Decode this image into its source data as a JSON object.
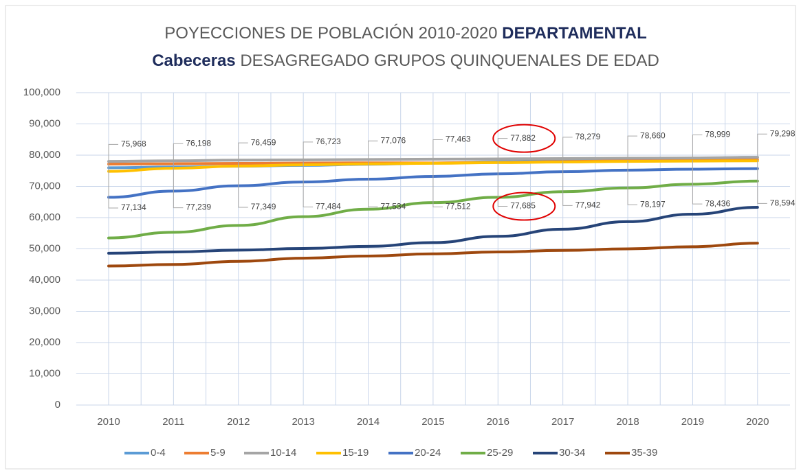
{
  "chart_data": {
    "type": "line",
    "title": [
      "POYECCIONES DE POBLACIÓN 2010-2020",
      "DEPARTAMENTAL",
      "Cabeceras",
      "DESAGREGADO GRUPOS QUINQUENALES DE EDAD"
    ],
    "categories": [
      "2010",
      "2011",
      "2012",
      "2013",
      "2014",
      "2015",
      "2016",
      "2017",
      "2018",
      "2019",
      "2020"
    ],
    "series": [
      {
        "name": "0-4",
        "color": "#5b9bd5",
        "values": [
          75968,
          76198,
          76459,
          76723,
          77076,
          77463,
          77882,
          78279,
          78660,
          78999,
          79298
        ],
        "value_labels": [
          "75,968",
          "76,198",
          "76,459",
          "76,723",
          "77,076",
          "77,463",
          "77,882",
          "78,279",
          "78,660",
          "78,999",
          "79,298"
        ]
      },
      {
        "name": "5-9",
        "color": "#ed7d31",
        "values": [
          77134,
          77239,
          77349,
          77484,
          77534,
          77512,
          77685,
          77942,
          78197,
          78436,
          78594
        ],
        "value_labels": [
          "77,134",
          "77,239",
          "77,349",
          "77,484",
          "77,534",
          "77,512",
          "77,685",
          "77,942",
          "78,197",
          "78,436",
          "78,594"
        ]
      },
      {
        "name": "10-14",
        "color": "#a5a5a5",
        "values": [
          78000,
          78200,
          78400,
          78500,
          78600,
          78700,
          78800,
          78900,
          79000,
          79100,
          79300
        ]
      },
      {
        "name": "15-19",
        "color": "#ffc000",
        "values": [
          74800,
          75800,
          76500,
          76900,
          77200,
          77400,
          77600,
          77800,
          78000,
          78100,
          78200
        ]
      },
      {
        "name": "20-24",
        "color": "#4472c4",
        "values": [
          66500,
          68500,
          70200,
          71400,
          72300,
          73200,
          74000,
          74700,
          75200,
          75500,
          75700
        ]
      },
      {
        "name": "25-29",
        "color": "#70ad47",
        "values": [
          53500,
          55300,
          57500,
          60300,
          62700,
          64800,
          66500,
          68300,
          69500,
          70700,
          71700
        ]
      },
      {
        "name": "30-34",
        "color": "#264478",
        "values": [
          48600,
          49000,
          49600,
          50100,
          50800,
          52000,
          54000,
          56300,
          58700,
          61100,
          63300
        ]
      },
      {
        "name": "35-39",
        "color": "#9e480e",
        "values": [
          44500,
          45000,
          46000,
          47000,
          47700,
          48400,
          49000,
          49500,
          50000,
          50700,
          51800
        ]
      }
    ],
    "ylim": [
      0,
      100000
    ],
    "yticks": [
      0,
      {
        "value": 10000,
        "label": "10,000"
      },
      {
        "value": 20000,
        "label": "20,000"
      },
      {
        "value": 30000,
        "label": "30,000"
      },
      {
        "value": 40000,
        "label": "40,000"
      },
      {
        "value": 50000,
        "label": "50,000"
      },
      {
        "value": 60000,
        "label": "60,000"
      },
      {
        "value": 70000,
        "label": "70,000"
      },
      {
        "value": 80000,
        "label": "80,000"
      },
      {
        "value": 90000,
        "label": "90,000"
      },
      {
        "value": 100000,
        "label": "100,000"
      }
    ],
    "grid": true,
    "legend": "bottom"
  }
}
